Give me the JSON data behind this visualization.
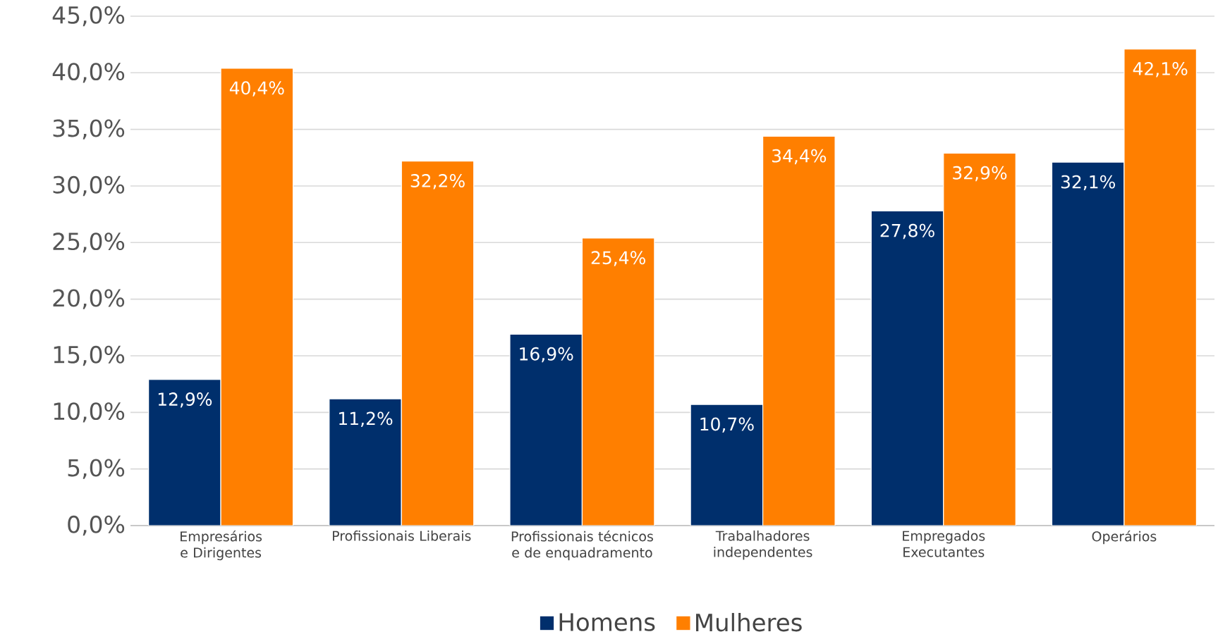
{
  "chart_data": {
    "type": "bar",
    "categories": [
      "Empresários e Dirigentes",
      "Profissionais Liberais",
      "Profissionais técnicos e de enquadramento",
      "Trabalhadores independentes",
      "Empregados Executantes",
      "Operários"
    ],
    "series": [
      {
        "name": "Homens",
        "color": "#002f6c",
        "values": [
          12.9,
          11.2,
          16.9,
          10.7,
          27.8,
          32.1
        ],
        "value_labels": [
          "12,9%",
          "11,2%",
          "16,9%",
          "10,7%",
          "27,8%",
          "32,1%"
        ]
      },
      {
        "name": "Mulheres",
        "color": "#ff7f00",
        "values": [
          40.4,
          32.2,
          25.4,
          34.4,
          32.9,
          42.1
        ],
        "value_labels": [
          "40,4%",
          "32,2%",
          "25,4%",
          "34,4%",
          "32,9%",
          "42,1%"
        ]
      }
    ],
    "ylim": [
      0,
      45
    ],
    "yticks": [
      {
        "value": 0,
        "label": "0,0%"
      },
      {
        "value": 5,
        "label": "5,0%"
      },
      {
        "value": 10,
        "label": "10,0%"
      },
      {
        "value": 15,
        "label": "15,0%"
      },
      {
        "value": 20,
        "label": "20,0%"
      },
      {
        "value": 25,
        "label": "25,0%"
      },
      {
        "value": 30,
        "label": "30,0%"
      },
      {
        "value": 35,
        "label": "35,0%"
      },
      {
        "value": 40,
        "label": "40,0%"
      },
      {
        "value": 45,
        "label": "45,0%"
      }
    ],
    "grid": "y",
    "legend": "bottom"
  }
}
